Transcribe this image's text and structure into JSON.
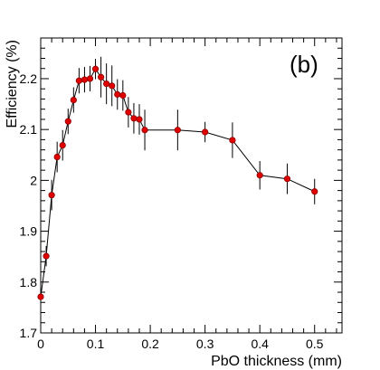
{
  "chart_data": {
    "type": "scatter",
    "title": "",
    "panel_label": "(b)",
    "xlabel": "PbO thickness (mm)",
    "ylabel": "Efficiency (%)",
    "xlim": [
      0,
      0.55
    ],
    "ylim": [
      1.7,
      2.28
    ],
    "x_ticks": [
      0,
      0.1,
      0.2,
      0.3,
      0.4,
      0.5
    ],
    "x_tick_labels": [
      "0",
      "0.1",
      "0.2",
      "0.3",
      "0.4",
      "0.5"
    ],
    "y_ticks": [
      1.7,
      1.8,
      1.9,
      2.0,
      2.1,
      2.2
    ],
    "y_tick_labels": [
      "1.7",
      "1.8",
      "1.9",
      "2",
      "2.1",
      "2.2"
    ],
    "grid": false,
    "legend": "none",
    "marker_color": "#e00000",
    "line_color": "#000000",
    "series": [
      {
        "x": [
          0.0,
          0.01,
          0.02,
          0.03,
          0.04,
          0.05,
          0.06,
          0.07,
          0.08,
          0.09,
          0.1,
          0.11,
          0.12,
          0.13,
          0.14,
          0.15,
          0.16,
          0.17,
          0.18,
          0.19,
          0.25,
          0.3,
          0.35,
          0.4,
          0.45,
          0.5
        ],
        "y": [
          1.771,
          1.851,
          1.971,
          2.046,
          2.069,
          2.116,
          2.158,
          2.196,
          2.198,
          2.2,
          2.219,
          2.203,
          2.19,
          2.186,
          2.169,
          2.167,
          2.134,
          2.122,
          2.12,
          2.099,
          2.099,
          2.095,
          2.079,
          2.01,
          2.003,
          1.978
        ],
        "yerr": [
          0.02,
          0.02,
          0.03,
          0.03,
          0.03,
          0.025,
          0.025,
          0.025,
          0.025,
          0.025,
          0.02,
          0.04,
          0.04,
          0.04,
          0.03,
          0.03,
          0.03,
          0.03,
          0.03,
          0.04,
          0.04,
          0.02,
          0.035,
          0.028,
          0.03,
          0.025
        ]
      }
    ]
  }
}
